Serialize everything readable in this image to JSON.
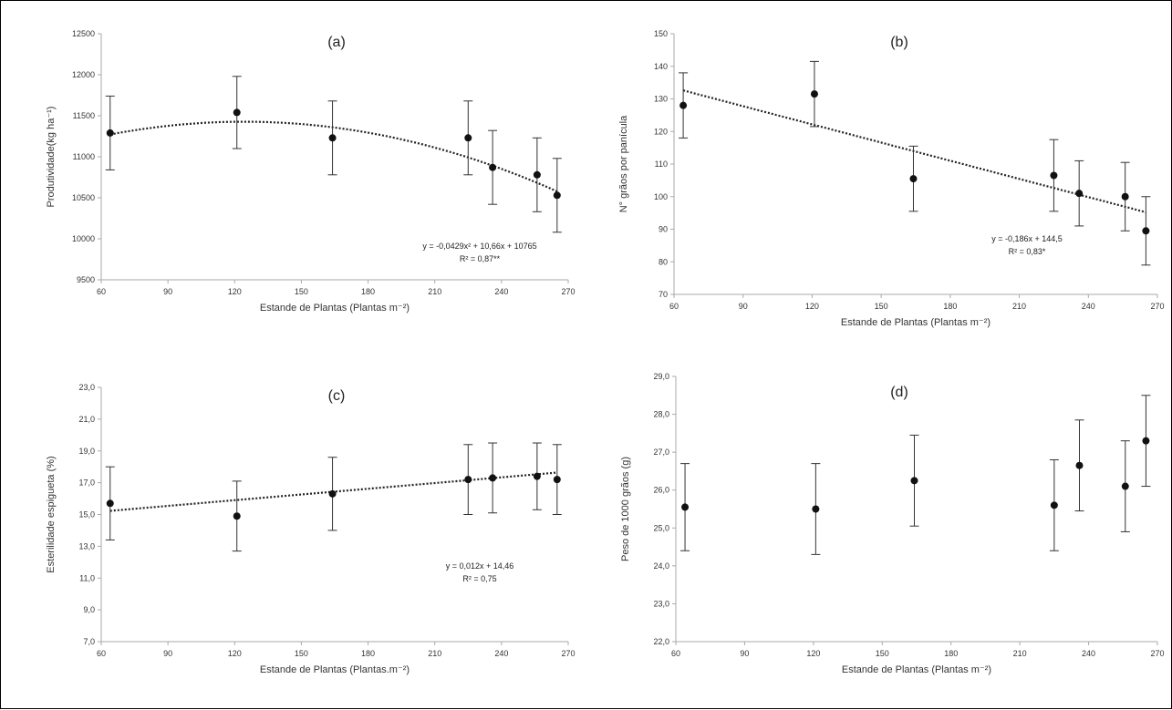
{
  "chart_data": [
    {
      "id": "a",
      "type": "scatter",
      "title": "(a)",
      "xlabel": "Estande de Plantas (Plantas m⁻²)",
      "ylabel": "Produtividade(kg ha⁻¹)",
      "xlim": [
        60,
        270
      ],
      "ylim": [
        9500,
        12500
      ],
      "xticks": [
        "60",
        "90",
        "120",
        "150",
        "180",
        "210",
        "240",
        "270"
      ],
      "yticks": [
        "9500",
        "10000",
        "10500",
        "11000",
        "11500",
        "12000",
        "12500"
      ],
      "points": [
        {
          "x": 64,
          "y": 11290,
          "err": 450
        },
        {
          "x": 121,
          "y": 11540,
          "err": 440
        },
        {
          "x": 164,
          "y": 11230,
          "err": 450
        },
        {
          "x": 225,
          "y": 11230,
          "err": 450
        },
        {
          "x": 236,
          "y": 10870,
          "err": 450
        },
        {
          "x": 256,
          "y": 10780,
          "err": 450
        },
        {
          "x": 265,
          "y": 10530,
          "err": 450
        }
      ],
      "trend": {
        "kind": "quadratic",
        "a": -0.0429,
        "b": 10.66,
        "c": 10765,
        "from": 64,
        "to": 265
      },
      "equation": [
        "y = -0,0429x² + 10,66x + 10765",
        "R² = 0,87**"
      ]
    },
    {
      "id": "b",
      "type": "scatter",
      "title": "(b)",
      "xlabel": "Estande de Plantas (Plantas m⁻²)",
      "ylabel": "N° grãos por panícula",
      "xlim": [
        60,
        270
      ],
      "ylim": [
        70,
        150
      ],
      "xticks": [
        "60",
        "90",
        "120",
        "150",
        "180",
        "210",
        "240",
        "270"
      ],
      "yticks": [
        "70",
        "80",
        "90",
        "100",
        "110",
        "120",
        "130",
        "140",
        "150"
      ],
      "points": [
        {
          "x": 64,
          "y": 128,
          "err": 10
        },
        {
          "x": 121,
          "y": 131.5,
          "err": 10
        },
        {
          "x": 164,
          "y": 105.5,
          "err": 10
        },
        {
          "x": 225,
          "y": 106.5,
          "err": 11
        },
        {
          "x": 236,
          "y": 101,
          "err": 10
        },
        {
          "x": 256,
          "y": 100,
          "err": 10.5
        },
        {
          "x": 265,
          "y": 89.5,
          "err": 10.5
        }
      ],
      "trend": {
        "kind": "linear",
        "slope": -0.186,
        "intercept": 144.5,
        "from": 64,
        "to": 265
      },
      "equation": [
        "y = -0,186x + 144,5",
        "R² = 0,83*"
      ]
    },
    {
      "id": "c",
      "type": "scatter",
      "title": "(c)",
      "xlabel": "Estande de Plantas (Plantas.m⁻²)",
      "ylabel": "Esterilidade espigueta (%)",
      "xlim": [
        60,
        270
      ],
      "ylim": [
        7,
        23
      ],
      "xticks": [
        "60",
        "90",
        "120",
        "150",
        "180",
        "210",
        "240",
        "270"
      ],
      "yticks": [
        "7,0",
        "9,0",
        "11,0",
        "13,0",
        "15,0",
        "17,0",
        "19,0",
        "21,0",
        "23,0"
      ],
      "points": [
        {
          "x": 64,
          "y": 15.7,
          "err": 2.3
        },
        {
          "x": 121,
          "y": 14.9,
          "err": 2.2
        },
        {
          "x": 164,
          "y": 16.3,
          "err": 2.3
        },
        {
          "x": 225,
          "y": 17.2,
          "err": 2.2
        },
        {
          "x": 236,
          "y": 17.3,
          "err": 2.2
        },
        {
          "x": 256,
          "y": 17.4,
          "err": 2.1
        },
        {
          "x": 265,
          "y": 17.2,
          "err": 2.2
        }
      ],
      "trend": {
        "kind": "linear",
        "slope": 0.012,
        "intercept": 14.46,
        "from": 64,
        "to": 265
      },
      "equation": [
        "y = 0,012x + 14,46",
        "R² = 0,75"
      ]
    },
    {
      "id": "d",
      "type": "scatter",
      "title": "(d)",
      "xlabel": "Estande de Plantas (Plantas m⁻²)",
      "ylabel": "Peso de 1000 grãos (g)",
      "xlim": [
        60,
        270
      ],
      "ylim": [
        22,
        29
      ],
      "xticks": [
        "60",
        "90",
        "120",
        "150",
        "180",
        "210",
        "240",
        "270"
      ],
      "yticks": [
        "22,0",
        "23,0",
        "24,0",
        "25,0",
        "26,0",
        "27,0",
        "28,0",
        "29,0"
      ],
      "points": [
        {
          "x": 64,
          "y": 25.55,
          "err": 1.15
        },
        {
          "x": 121,
          "y": 25.5,
          "err": 1.2
        },
        {
          "x": 164,
          "y": 26.25,
          "err": 1.2
        },
        {
          "x": 225,
          "y": 25.6,
          "err": 1.2
        },
        {
          "x": 236,
          "y": 26.65,
          "err": 1.2
        },
        {
          "x": 256,
          "y": 26.1,
          "err": 1.2
        },
        {
          "x": 265,
          "y": 27.3,
          "err": 1.2
        }
      ],
      "trend": null,
      "equation": []
    }
  ]
}
